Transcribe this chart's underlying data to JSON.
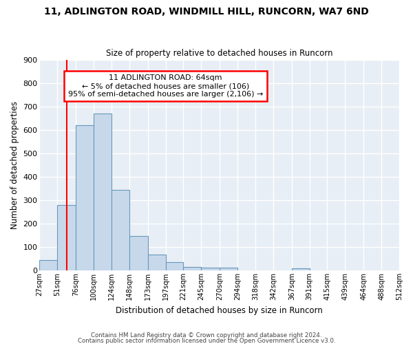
{
  "title": "11, ADLINGTON ROAD, WINDMILL HILL, RUNCORN, WA7 6ND",
  "subtitle": "Size of property relative to detached houses in Runcorn",
  "xlabel": "Distribution of detached houses by size in Runcorn",
  "ylabel": "Number of detached properties",
  "bar_color": "#c8d8eb",
  "bar_edge_color": "#6699bb",
  "background_color": "#e8eef5",
  "grid_color": "#ffffff",
  "annotation_line1": "11 ADLINGTON ROAD: 64sqm",
  "annotation_line2": "← 5% of detached houses are smaller (106)",
  "annotation_line3": "95% of semi-detached houses are larger (2,106) →",
  "redline_x": 64,
  "bins": [
    27,
    51,
    76,
    100,
    124,
    148,
    173,
    197,
    221,
    245,
    270,
    294,
    318,
    342,
    367,
    391,
    415,
    439,
    464,
    488,
    512
  ],
  "counts": [
    45,
    280,
    620,
    670,
    345,
    148,
    68,
    35,
    15,
    13,
    11,
    0,
    0,
    0,
    10,
    0,
    0,
    0,
    0,
    0
  ],
  "tick_labels": [
    "27sqm",
    "51sqm",
    "76sqm",
    "100sqm",
    "124sqm",
    "148sqm",
    "173sqm",
    "197sqm",
    "221sqm",
    "245sqm",
    "270sqm",
    "294sqm",
    "318sqm",
    "342sqm",
    "367sqm",
    "391sqm",
    "415sqm",
    "439sqm",
    "464sqm",
    "488sqm",
    "512sqm"
  ],
  "ylim": [
    0,
    900
  ],
  "yticks": [
    0,
    100,
    200,
    300,
    400,
    500,
    600,
    700,
    800,
    900
  ],
  "footer1": "Contains HM Land Registry data © Crown copyright and database right 2024.",
  "footer2": "Contains public sector information licensed under the Open Government Licence v3.0."
}
